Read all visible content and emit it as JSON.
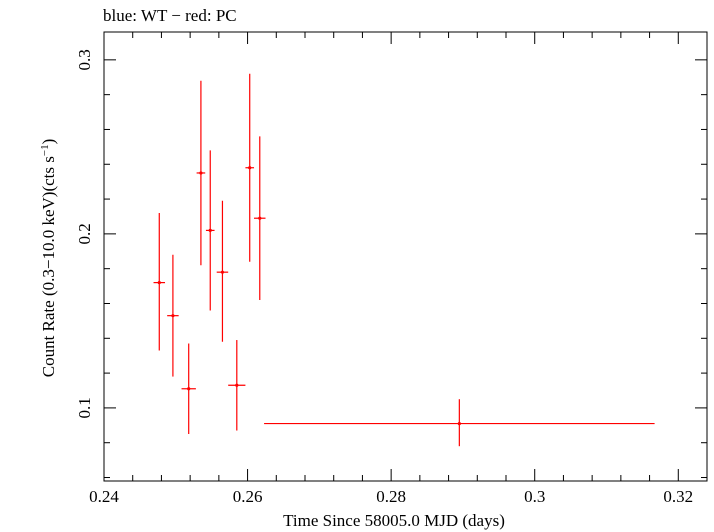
{
  "chart_data": {
    "type": "scatter",
    "title": "blue: WT − red: PC",
    "xlabel": "Time Since 58005.0 MJD (days)",
    "ylabel_main": "Count Rate (0.3−10.0 keV)(cts s",
    "ylabel_sup": "−1",
    "ylabel_end": ")",
    "xlim": [
      0.24,
      0.324
    ],
    "ylim": [
      0.058,
      0.316
    ],
    "x_ticks": [
      0.24,
      0.26,
      0.28,
      0.3,
      0.32
    ],
    "x_tick_labels": [
      "0.24",
      "0.26",
      "0.28",
      "0.3",
      "0.32"
    ],
    "y_ticks": [
      0.1,
      0.2,
      0.3
    ],
    "y_tick_labels": [
      "0.1",
      "0.2",
      "0.3"
    ],
    "series": [
      {
        "name": "PC",
        "color": "#ff0000",
        "points": [
          {
            "x": 0.2477,
            "xerr": 0.0008,
            "y": 0.172,
            "yerr_low": 0.039,
            "yerr_high": 0.04
          },
          {
            "x": 0.2496,
            "xerr": 0.0008,
            "y": 0.153,
            "yerr_low": 0.035,
            "yerr_high": 0.035
          },
          {
            "x": 0.2518,
            "xerr": 0.001,
            "y": 0.111,
            "yerr_low": 0.026,
            "yerr_high": 0.026
          },
          {
            "x": 0.2535,
            "xerr": 0.0006,
            "y": 0.235,
            "yerr_low": 0.053,
            "yerr_high": 0.053
          },
          {
            "x": 0.2548,
            "xerr": 0.0006,
            "y": 0.202,
            "yerr_low": 0.046,
            "yerr_high": 0.046
          },
          {
            "x": 0.2565,
            "xerr": 0.0008,
            "y": 0.178,
            "yerr_low": 0.04,
            "yerr_high": 0.041
          },
          {
            "x": 0.2585,
            "xerr": 0.0012,
            "y": 0.113,
            "yerr_low": 0.026,
            "yerr_high": 0.026
          },
          {
            "x": 0.2603,
            "xerr": 0.0006,
            "y": 0.238,
            "yerr_low": 0.054,
            "yerr_high": 0.054
          },
          {
            "x": 0.2617,
            "xerr": 0.0008,
            "y": 0.209,
            "yerr_low": 0.047,
            "yerr_high": 0.047
          },
          {
            "x": 0.2895,
            "xerr": 0.0272,
            "y": 0.091,
            "yerr_low": 0.013,
            "yerr_high": 0.014
          }
        ]
      }
    ]
  }
}
